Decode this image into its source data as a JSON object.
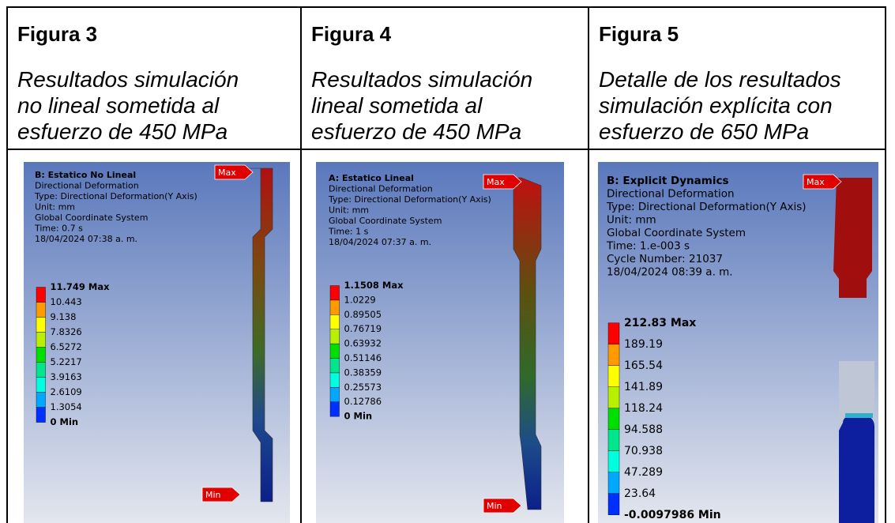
{
  "figures": [
    {
      "label": "Figura 3",
      "caption": [
        "Resultados simulación",
        "no lineal sometida al",
        "esfuerzo de 450 MPa"
      ],
      "panel": {
        "title": "B: Estatico No Lineal",
        "info": [
          "Directional Deformation",
          "Type: Directional Deformation(Y Axis)",
          "Unit: mm",
          "Global Coordinate System",
          "Time: 0.7 s",
          "18/04/2024 07:38 a. m."
        ],
        "legend": [
          "11.749 Max",
          "10.443",
          "9.138",
          "7.8326",
          "6.5272",
          "5.2217",
          "3.9163",
          "2.6109",
          "1.3054",
          "0 Min"
        ],
        "max_tag": "Max",
        "min_tag": "Min"
      }
    },
    {
      "label": "Figura 4",
      "caption": [
        "Resultados simulación",
        "lineal sometida al",
        "esfuerzo de 450 MPa"
      ],
      "panel": {
        "title": "A: Estatico Lineal",
        "info": [
          "Directional Deformation",
          "Type: Directional Deformation(Y Axis)",
          "Unit: mm",
          "Global Coordinate System",
          "Time: 1 s",
          "18/04/2024 07:37 a. m."
        ],
        "legend": [
          "1.1508 Max",
          "1.0229",
          "0.89505",
          "0.76719",
          "0.63932",
          "0.51146",
          "0.38359",
          "0.25573",
          "0.12786",
          "0 Min"
        ],
        "max_tag": "Max",
        "min_tag": "Min"
      }
    },
    {
      "label": "Figura 5",
      "caption": [
        "Detalle de los resultados",
        "simulación explícita con",
        "esfuerzo de 650 MPa"
      ],
      "panel": {
        "title": "B: Explicit Dynamics",
        "info": [
          "Directional Deformation",
          "Type: Directional Deformation(Y Axis)",
          "Unit: mm",
          "Global Coordinate System",
          "Time: 1.e-003 s",
          "Cycle Number: 21037",
          "18/04/2024 08:39 a. m."
        ],
        "legend": [
          "212.83 Max",
          "189.19",
          "165.54",
          "141.89",
          "118.24",
          "94.588",
          "70.938",
          "47.289",
          "23.64",
          "-0.0097986 Min"
        ],
        "max_tag": "Max"
      }
    }
  ]
}
